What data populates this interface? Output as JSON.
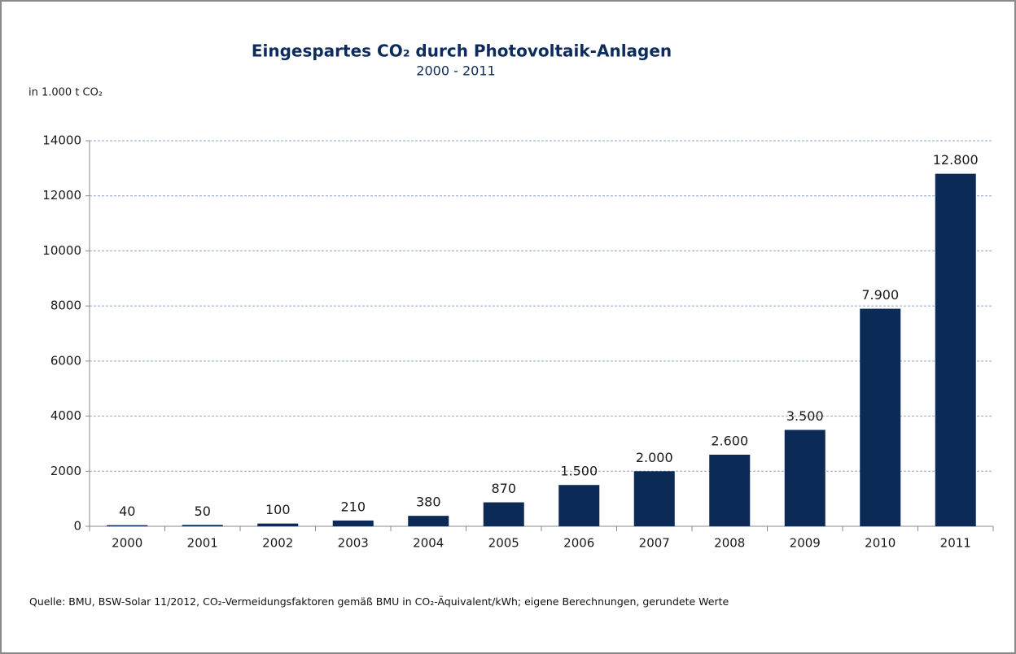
{
  "chart_data": {
    "type": "bar",
    "title": "Eingespartes CO₂ durch Photovoltaik-Anlagen",
    "subtitle": "2000 - 2011",
    "y_axis_label": "in 1.000 t CO₂",
    "source": "Quelle: BMU, BSW-Solar 11/2012, CO₂-Vermeidungsfaktoren gemäß BMU in CO₂-Äquivalent/kWh; eigene Berechnungen, gerundete Werte",
    "categories": [
      "2000",
      "2001",
      "2002",
      "2003",
      "2004",
      "2005",
      "2006",
      "2007",
      "2008",
      "2009",
      "2010",
      "2011"
    ],
    "values": [
      40,
      50,
      100,
      210,
      380,
      870,
      1500,
      2000,
      2600,
      3500,
      7900,
      12800
    ],
    "value_labels": [
      "40",
      "50",
      "100",
      "210",
      "380",
      "870",
      "1.500",
      "2.000",
      "2.600",
      "3.500",
      "7.900",
      "12.800"
    ],
    "color": "#0b2a55",
    "ylim": [
      0,
      14000
    ],
    "yticks": [
      0,
      2000,
      4000,
      6000,
      8000,
      10000,
      12000,
      14000
    ],
    "grid": true
  }
}
